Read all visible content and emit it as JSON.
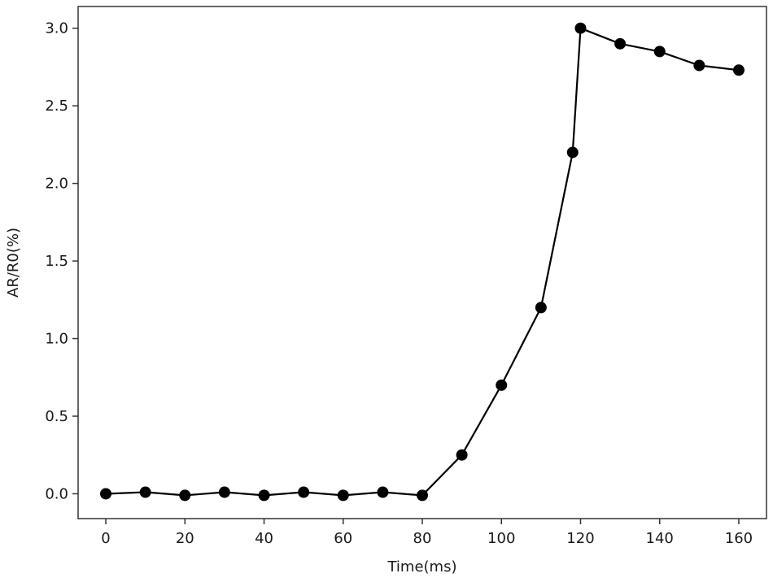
{
  "chart_data": {
    "type": "line",
    "title": "",
    "xlabel": "Time(ms)",
    "ylabel": "AR/R0(%)",
    "xlim": [
      -7,
      167
    ],
    "ylim": [
      -0.16,
      3.14
    ],
    "xticks": [
      0,
      20,
      40,
      60,
      80,
      100,
      120,
      140,
      160
    ],
    "xtick_labels": [
      "0",
      "20",
      "40",
      "60",
      "80",
      "100",
      "120",
      "140",
      "160"
    ],
    "yticks": [
      0.0,
      0.5,
      1.0,
      1.5,
      2.0,
      2.5,
      3.0
    ],
    "ytick_labels": [
      "0.0",
      "0.5",
      "1.0",
      "1.5",
      "2.0",
      "2.5",
      "3.0"
    ],
    "grid": false,
    "legend": "none",
    "series": [
      {
        "color": "#000000",
        "marker": "circle",
        "x": [
          0,
          10,
          20,
          30,
          40,
          50,
          60,
          70,
          80,
          90,
          100,
          110,
          118,
          120,
          130,
          140,
          150,
          160
        ],
        "y": [
          0.0,
          0.01,
          -0.01,
          0.01,
          -0.01,
          0.01,
          -0.01,
          0.01,
          -0.01,
          0.25,
          0.7,
          1.2,
          2.2,
          3.0,
          2.9,
          2.85,
          2.76,
          2.73
        ]
      }
    ]
  }
}
